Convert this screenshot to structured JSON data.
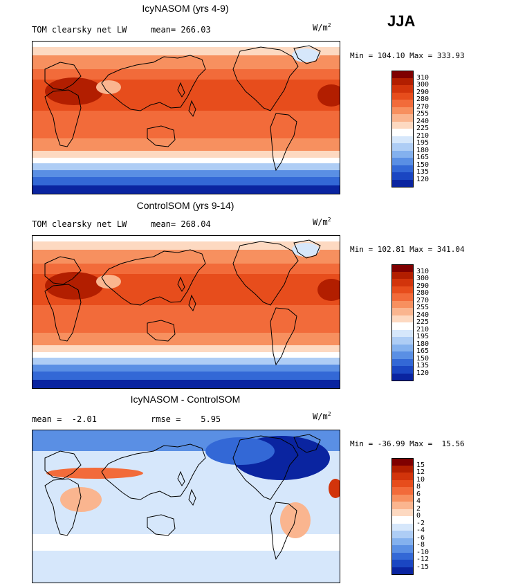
{
  "season_label": "JJA",
  "panels": [
    {
      "title": "IcyNASOM (yrs 4-9)",
      "subtitle_left": "TOM clearsky net LW",
      "subtitle_mid": "mean= 266.03",
      "units": "W/m",
      "units_sup": "2",
      "minmax": "Min = 104.10 Max = 333.93",
      "colorbar_labels": [
        "310",
        "300",
        "290",
        "280",
        "270",
        "255",
        "240",
        "225",
        "210",
        "195",
        "180",
        "165",
        "150",
        "135",
        "120"
      ],
      "colors": [
        "#7f0000",
        "#b21e00",
        "#d2340b",
        "#e74d1c",
        "#f26b3a",
        "#f7905f",
        "#fab58f",
        "#fdd9c1",
        "#ffffff",
        "#d6e7fb",
        "#aecdf5",
        "#84b1ee",
        "#5a8fe4",
        "#3368d6",
        "#1a46c2",
        "#0a24a0"
      ],
      "map_scheme": "abs"
    },
    {
      "title": "ControlSOM (yrs 9-14)",
      "subtitle_left": "TOM clearsky net LW",
      "subtitle_mid": "mean= 268.04",
      "units": "W/m",
      "units_sup": "2",
      "minmax": "Min = 102.81 Max = 341.04",
      "colorbar_labels": [
        "310",
        "300",
        "290",
        "280",
        "270",
        "255",
        "240",
        "225",
        "210",
        "195",
        "180",
        "165",
        "150",
        "135",
        "120"
      ],
      "colors": [
        "#7f0000",
        "#b21e00",
        "#d2340b",
        "#e74d1c",
        "#f26b3a",
        "#f7905f",
        "#fab58f",
        "#fdd9c1",
        "#ffffff",
        "#d6e7fb",
        "#aecdf5",
        "#84b1ee",
        "#5a8fe4",
        "#3368d6",
        "#1a46c2",
        "#0a24a0"
      ],
      "map_scheme": "abs"
    },
    {
      "title": "IcyNASOM - ControlSOM",
      "subtitle_left": "mean =  -2.01",
      "subtitle_mid": "rmse =    5.95",
      "units": "W/m",
      "units_sup": "2",
      "minmax": "Min = -36.99 Max =  15.56",
      "colorbar_labels": [
        "15",
        "12",
        "10",
        "8",
        "6",
        "4",
        "2",
        "0",
        "-2",
        "-4",
        "-6",
        "-8",
        "-10",
        "-12",
        "-15"
      ],
      "colors": [
        "#7f0000",
        "#b21e00",
        "#d2340b",
        "#e74d1c",
        "#f26b3a",
        "#f7905f",
        "#fab58f",
        "#fdd9c1",
        "#ffffff",
        "#d6e7fb",
        "#aecdf5",
        "#84b1ee",
        "#5a8fe4",
        "#3368d6",
        "#1a46c2",
        "#0a24a0"
      ],
      "map_scheme": "diff"
    }
  ]
}
